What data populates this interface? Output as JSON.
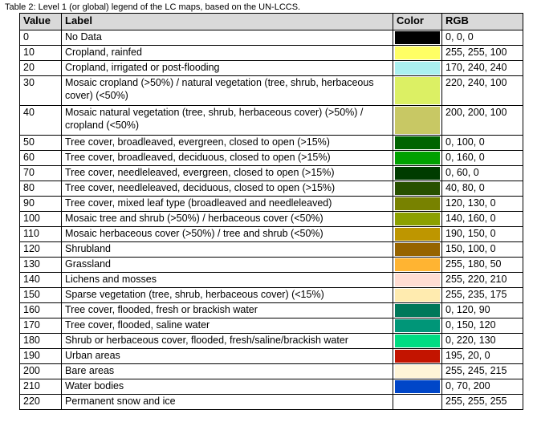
{
  "caption": "Table 2: Level 1 (or global) legend of the LC maps, based on the UN-LCCS.",
  "headers": {
    "value": "Value",
    "label": "Label",
    "color": "Color",
    "rgb": "RGB"
  },
  "rows": [
    {
      "value": "0",
      "label": "No Data",
      "rgb": "0, 0, 0",
      "color": "#000000"
    },
    {
      "value": "10",
      "label": "Cropland, rainfed",
      "rgb": "255, 255, 100",
      "color": "#ffff64"
    },
    {
      "value": "20",
      "label": "Cropland, irrigated or post-flooding",
      "rgb": "170, 240, 240",
      "color": "#aaf0f0"
    },
    {
      "value": "30",
      "label": "Mosaic cropland (>50%) / natural vegetation (tree, shrub, herbaceous cover) (<50%)",
      "rgb": "220, 240, 100",
      "color": "#dcf064"
    },
    {
      "value": "40",
      "label": "Mosaic natural vegetation (tree, shrub, herbaceous cover) (>50%) / cropland (<50%)",
      "rgb": "200, 200, 100",
      "color": "#c8c864"
    },
    {
      "value": "50",
      "label": "Tree cover, broadleaved, evergreen, closed to open (>15%)",
      "rgb": "0, 100, 0",
      "color": "#006400"
    },
    {
      "value": "60",
      "label": "Tree cover, broadleaved, deciduous, closed to open (>15%)",
      "rgb": "0, 160, 0",
      "color": "#00a000"
    },
    {
      "value": "70",
      "label": "Tree cover, needleleaved, evergreen, closed to open (>15%)",
      "rgb": "0, 60, 0",
      "color": "#003c00"
    },
    {
      "value": "80",
      "label": "Tree cover, needleleaved, deciduous, closed to open (>15%)",
      "rgb": "40, 80, 0",
      "color": "#285000"
    },
    {
      "value": "90",
      "label": "Tree cover, mixed leaf type (broadleaved and needleleaved)",
      "rgb": "120, 130, 0",
      "color": "#788200"
    },
    {
      "value": "100",
      "label": "Mosaic tree and shrub (>50%) / herbaceous cover (<50%)",
      "rgb": "140, 160, 0",
      "color": "#8ca000"
    },
    {
      "value": "110",
      "label": "Mosaic herbaceous cover (>50%) / tree and shrub (<50%)",
      "rgb": "190, 150, 0",
      "color": "#be9600"
    },
    {
      "value": "120",
      "label": "Shrubland",
      "rgb": "150, 100, 0",
      "color": "#966400"
    },
    {
      "value": "130",
      "label": "Grassland",
      "rgb": "255, 180, 50",
      "color": "#ffb432"
    },
    {
      "value": "140",
      "label": "Lichens and mosses",
      "rgb": "255, 220, 210",
      "color": "#ffdcd2"
    },
    {
      "value": "150",
      "label": "Sparse vegetation (tree, shrub, herbaceous cover) (<15%)",
      "rgb": "255, 235, 175",
      "color": "#ffebaf"
    },
    {
      "value": "160",
      "label": "Tree cover, flooded, fresh or brackish water",
      "rgb": "0, 120, 90",
      "color": "#00785a"
    },
    {
      "value": "170",
      "label": "Tree cover, flooded, saline water",
      "rgb": "0, 150, 120",
      "color": "#009678"
    },
    {
      "value": "180",
      "label": "Shrub or herbaceous cover, flooded, fresh/saline/brackish water",
      "rgb": "0, 220, 130",
      "color": "#00dc82"
    },
    {
      "value": "190",
      "label": "Urban areas",
      "rgb": "195, 20, 0",
      "color": "#c31400"
    },
    {
      "value": "200",
      "label": "Bare areas",
      "rgb": "255, 245, 215",
      "color": "#fff5d7"
    },
    {
      "value": "210",
      "label": "Water bodies",
      "rgb": "0, 70, 200",
      "color": "#0046c8"
    },
    {
      "value": "220",
      "label": "Permanent snow and ice",
      "rgb": "255, 255, 255",
      "color": "#ffffff"
    }
  ]
}
